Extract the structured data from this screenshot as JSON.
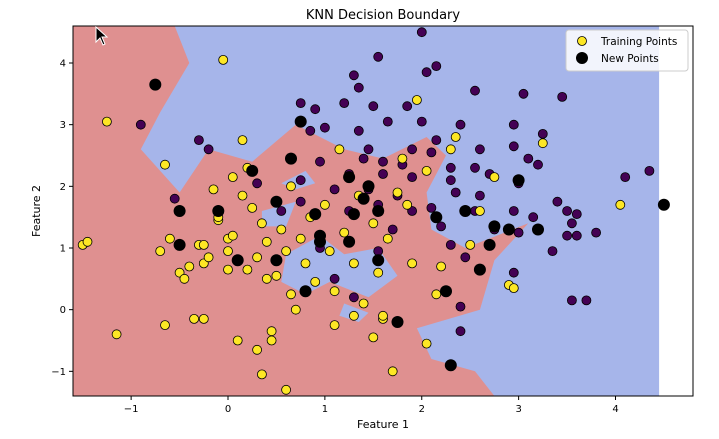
{
  "chart_data": {
    "type": "scatter",
    "title": "KNN Decision Boundary",
    "xlabel": "Feature 1",
    "ylabel": "Feature 2",
    "xlim": [
      -1.6,
      4.8
    ],
    "ylim": [
      -1.4,
      4.6
    ],
    "x_ticks": [
      -1,
      0,
      1,
      2,
      3,
      4
    ],
    "y_ticks": [
      -1,
      0,
      1,
      2,
      3,
      4
    ],
    "grid": false,
    "legend": {
      "placement": "top-right",
      "entries": [
        "Training Points",
        "New Points"
      ]
    },
    "colors": {
      "region_class0": "#a6b5ea",
      "region_class1": "#df9090",
      "class0_point": "#440154",
      "class1_point": "#fde725",
      "new_point": "#000000"
    },
    "decision_region_class1": [
      [
        -1.6,
        -1.4
      ],
      [
        2.75,
        -1.4
      ],
      [
        2.55,
        -1.0
      ],
      [
        2.1,
        -0.8
      ],
      [
        1.95,
        -0.3
      ],
      [
        2.6,
        0.0
      ],
      [
        2.75,
        0.8
      ],
      [
        3.1,
        1.4
      ],
      [
        2.45,
        1.0
      ],
      [
        2.1,
        1.3
      ],
      [
        2.05,
        1.9
      ],
      [
        2.25,
        2.5
      ],
      [
        2.05,
        2.8
      ],
      [
        1.6,
        2.45
      ],
      [
        1.2,
        2.6
      ],
      [
        0.7,
        3.0
      ],
      [
        0.25,
        2.4
      ],
      [
        -0.2,
        2.6
      ],
      [
        -0.5,
        1.9
      ],
      [
        -0.9,
        2.6
      ],
      [
        -0.7,
        3.2
      ],
      [
        -0.4,
        4.0
      ],
      [
        -0.55,
        4.6
      ],
      [
        -1.6,
        4.6
      ]
    ],
    "decision_region_class0_islands": [
      [
        [
          0.6,
          0.9
        ],
        [
          0.95,
          1.2
        ],
        [
          1.2,
          0.9
        ],
        [
          1.55,
          1.0
        ],
        [
          1.75,
          0.55
        ],
        [
          1.45,
          0.2
        ],
        [
          1.05,
          0.45
        ],
        [
          0.8,
          0.25
        ],
        [
          0.55,
          0.45
        ]
      ],
      [
        [
          0.35,
          1.6
        ],
        [
          0.7,
          1.75
        ],
        [
          0.6,
          1.35
        ],
        [
          0.35,
          1.35
        ]
      ],
      [
        [
          1.2,
          0.1
        ],
        [
          1.45,
          -0.05
        ],
        [
          1.35,
          -0.2
        ],
        [
          1.15,
          -0.1
        ]
      ],
      [
        [
          0.55,
          2.05
        ],
        [
          0.8,
          2.25
        ],
        [
          0.9,
          2.05
        ],
        [
          0.7,
          1.95
        ]
      ]
    ],
    "training_points_class0": [
      [
        1.3,
        3.8
      ],
      [
        1.55,
        4.1
      ],
      [
        2.0,
        4.5
      ],
      [
        2.05,
        3.85
      ],
      [
        2.15,
        3.95
      ],
      [
        1.35,
        3.6
      ],
      [
        0.75,
        3.35
      ],
      [
        0.9,
        3.25
      ],
      [
        1.2,
        3.35
      ],
      [
        1.5,
        3.3
      ],
      [
        1.85,
        3.3
      ],
      [
        2.55,
        3.55
      ],
      [
        3.05,
        3.5
      ],
      [
        3.45,
        3.45
      ],
      [
        0.85,
        2.9
      ],
      [
        1.0,
        2.95
      ],
      [
        1.35,
        2.9
      ],
      [
        1.65,
        3.05
      ],
      [
        2.0,
        3.05
      ],
      [
        2.4,
        3.0
      ],
      [
        2.95,
        3.0
      ],
      [
        1.45,
        2.6
      ],
      [
        1.9,
        2.6
      ],
      [
        2.1,
        2.55
      ],
      [
        2.6,
        2.6
      ],
      [
        2.95,
        2.65
      ],
      [
        3.25,
        2.85
      ],
      [
        0.95,
        2.4
      ],
      [
        1.4,
        2.45
      ],
      [
        1.6,
        2.4
      ],
      [
        1.8,
        2.35
      ],
      [
        2.3,
        2.3
      ],
      [
        2.55,
        2.3
      ],
      [
        3.1,
        2.45
      ],
      [
        3.2,
        2.35
      ],
      [
        1.25,
        2.2
      ],
      [
        1.6,
        2.2
      ],
      [
        1.9,
        2.15
      ],
      [
        2.3,
        2.1
      ],
      [
        2.7,
        2.2
      ],
      [
        3.0,
        2.05
      ],
      [
        1.1,
        1.95
      ],
      [
        1.45,
        1.95
      ],
      [
        1.75,
        1.85
      ],
      [
        2.35,
        1.9
      ],
      [
        2.6,
        1.85
      ],
      [
        3.4,
        1.75
      ],
      [
        1.55,
        1.7
      ],
      [
        1.9,
        1.6
      ],
      [
        2.1,
        1.65
      ],
      [
        2.55,
        1.6
      ],
      [
        2.95,
        1.6
      ],
      [
        3.15,
        1.5
      ],
      [
        3.5,
        1.6
      ],
      [
        3.6,
        1.55
      ],
      [
        3.55,
        1.4
      ],
      [
        2.2,
        1.35
      ],
      [
        2.75,
        1.3
      ],
      [
        3.0,
        1.25
      ],
      [
        3.6,
        1.2
      ],
      [
        3.8,
        1.25
      ],
      [
        2.3,
        1.05
      ],
      [
        3.5,
        1.2
      ],
      [
        2.45,
        0.85
      ],
      [
        2.95,
        0.6
      ],
      [
        3.55,
        0.15
      ],
      [
        3.7,
        0.15
      ],
      [
        2.4,
        0.05
      ],
      [
        1.3,
        0.2
      ],
      [
        2.4,
        -0.35
      ],
      [
        1.1,
        0.5
      ],
      [
        0.55,
        1.6
      ],
      [
        0.75,
        1.75
      ],
      [
        -0.55,
        1.8
      ],
      [
        -0.3,
        2.75
      ],
      [
        -0.2,
        2.6
      ],
      [
        -0.9,
        3.0
      ],
      [
        0.3,
        2.05
      ],
      [
        0.75,
        2.1
      ],
      [
        0.95,
        1.0
      ],
      [
        1.55,
        0.95
      ],
      [
        4.1,
        2.15
      ],
      [
        4.35,
        2.25
      ],
      [
        1.25,
        1.6
      ],
      [
        1.7,
        1.3
      ],
      [
        2.15,
        2.75
      ],
      [
        3.35,
        0.95
      ]
    ],
    "training_points_class1": [
      [
        -1.5,
        1.05
      ],
      [
        -1.45,
        1.1
      ],
      [
        -1.25,
        3.05
      ],
      [
        -1.15,
        -0.4
      ],
      [
        -0.65,
        2.35
      ],
      [
        -0.6,
        1.15
      ],
      [
        -0.65,
        -0.25
      ],
      [
        -0.5,
        0.6
      ],
      [
        -0.5,
        1.6
      ],
      [
        -0.4,
        0.7
      ],
      [
        -0.3,
        1.05
      ],
      [
        -0.25,
        0.75
      ],
      [
        -0.2,
        0.85
      ],
      [
        -0.15,
        1.95
      ],
      [
        -0.1,
        1.45
      ],
      [
        -0.1,
        1.5
      ],
      [
        -0.05,
        4.05
      ],
      [
        0.0,
        0.65
      ],
      [
        0.0,
        1.15
      ],
      [
        0.05,
        1.2
      ],
      [
        0.05,
        2.15
      ],
      [
        0.1,
        -0.5
      ],
      [
        0.15,
        2.75
      ],
      [
        0.2,
        2.3
      ],
      [
        0.25,
        1.65
      ],
      [
        0.3,
        0.85
      ],
      [
        0.35,
        1.4
      ],
      [
        0.4,
        1.1
      ],
      [
        0.4,
        0.5
      ],
      [
        0.45,
        -0.35
      ],
      [
        0.45,
        -0.5
      ],
      [
        0.5,
        0.55
      ],
      [
        0.55,
        1.3
      ],
      [
        0.6,
        0.95
      ],
      [
        0.65,
        0.25
      ],
      [
        0.7,
        0.0
      ],
      [
        0.75,
        1.15
      ],
      [
        0.8,
        0.75
      ],
      [
        0.85,
        1.5
      ],
      [
        0.9,
        0.45
      ],
      [
        1.0,
        1.7
      ],
      [
        1.05,
        0.95
      ],
      [
        1.1,
        0.3
      ],
      [
        1.2,
        1.25
      ],
      [
        1.3,
        0.75
      ],
      [
        1.35,
        1.85
      ],
      [
        1.4,
        0.1
      ],
      [
        1.5,
        1.4
      ],
      [
        1.55,
        0.6
      ],
      [
        1.6,
        -0.15
      ],
      [
        1.65,
        1.15
      ],
      [
        1.75,
        1.9
      ],
      [
        1.8,
        2.45
      ],
      [
        1.9,
        0.75
      ],
      [
        1.95,
        3.4
      ],
      [
        2.05,
        2.25
      ],
      [
        2.15,
        0.25
      ],
      [
        2.2,
        0.7
      ],
      [
        2.3,
        2.6
      ],
      [
        2.35,
        2.8
      ],
      [
        2.5,
        1.05
      ],
      [
        2.6,
        1.6
      ],
      [
        2.75,
        2.15
      ],
      [
        2.9,
        0.4
      ],
      [
        2.95,
        0.35
      ],
      [
        3.25,
        2.7
      ],
      [
        4.05,
        1.7
      ],
      [
        -0.35,
        -0.15
      ],
      [
        -0.25,
        -0.15
      ],
      [
        0.3,
        -0.65
      ],
      [
        0.35,
        -1.05
      ],
      [
        0.6,
        -1.3
      ],
      [
        1.1,
        -0.25
      ],
      [
        1.3,
        -0.1
      ],
      [
        1.5,
        -0.45
      ],
      [
        1.6,
        -0.1
      ],
      [
        1.7,
        -1.0
      ],
      [
        -0.7,
        0.95
      ],
      [
        -0.45,
        0.5
      ],
      [
        0.0,
        0.95
      ],
      [
        0.2,
        0.65
      ],
      [
        1.85,
        1.7
      ],
      [
        2.05,
        -0.55
      ],
      [
        1.15,
        2.6
      ],
      [
        0.65,
        2.0
      ],
      [
        0.15,
        1.85
      ],
      [
        -0.25,
        1.05
      ],
      [
        1.45,
        2.0
      ]
    ],
    "new_points": [
      [
        -0.75,
        3.65
      ],
      [
        -0.5,
        1.6
      ],
      [
        -0.5,
        1.05
      ],
      [
        -0.1,
        1.6
      ],
      [
        0.1,
        0.8
      ],
      [
        0.25,
        2.25
      ],
      [
        0.5,
        0.8
      ],
      [
        0.5,
        1.75
      ],
      [
        0.65,
        2.45
      ],
      [
        0.75,
        3.05
      ],
      [
        0.8,
        0.3
      ],
      [
        0.9,
        1.55
      ],
      [
        0.95,
        1.1
      ],
      [
        0.95,
        1.2
      ],
      [
        1.25,
        1.1
      ],
      [
        1.25,
        2.15
      ],
      [
        1.3,
        1.55
      ],
      [
        1.4,
        1.8
      ],
      [
        1.45,
        2.0
      ],
      [
        1.55,
        1.6
      ],
      [
        1.55,
        0.8
      ],
      [
        1.75,
        -0.2
      ],
      [
        2.15,
        1.5
      ],
      [
        2.25,
        0.3
      ],
      [
        2.3,
        -0.9
      ],
      [
        2.45,
        1.6
      ],
      [
        2.6,
        0.65
      ],
      [
        2.7,
        1.05
      ],
      [
        2.75,
        1.35
      ],
      [
        2.9,
        1.3
      ],
      [
        3.0,
        2.1
      ],
      [
        3.2,
        1.3
      ],
      [
        4.5,
        1.7
      ]
    ]
  }
}
